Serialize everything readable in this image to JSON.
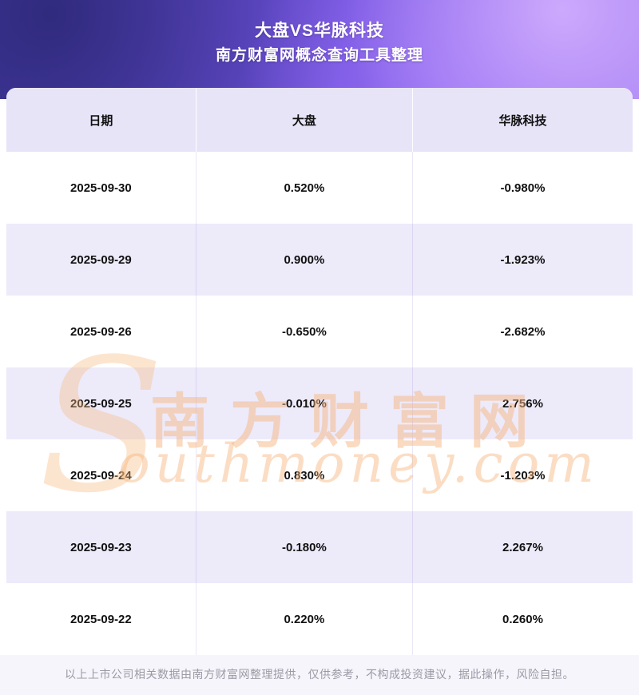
{
  "banner": {
    "title_line1": "大盘VS华脉科技",
    "title_line2": "南方财富网概念查询工具整理"
  },
  "table": {
    "headers": [
      "日期",
      "大盘",
      "华脉科技"
    ],
    "rows": [
      [
        "2025-09-30",
        "0.520%",
        "-0.980%"
      ],
      [
        "2025-09-29",
        "0.900%",
        "-1.923%"
      ],
      [
        "2025-09-26",
        "-0.650%",
        "-2.682%"
      ],
      [
        "2025-09-25",
        "-0.010%",
        "2.756%"
      ],
      [
        "2025-09-24",
        "0.830%",
        "-1.203%"
      ],
      [
        "2025-09-23",
        "-0.180%",
        "2.267%"
      ],
      [
        "2025-09-22",
        "0.220%",
        "0.260%"
      ]
    ]
  },
  "watermark": {
    "s_letter": "S",
    "cn": "南方财富网",
    "en": "outhmoney.com"
  },
  "footer": {
    "text": "以上上市公司相关数据由南方财富网整理提供，仅供参考，不构成投资建议，据此操作，风险自担。"
  },
  "colors": {
    "banner_purple": "#6a4fd6",
    "header_row_bg": "#e8e4f8",
    "alt_row_bg": "#edeafa",
    "watermark_orange": "#f6b987",
    "footer_text": "#9a9aa5"
  }
}
